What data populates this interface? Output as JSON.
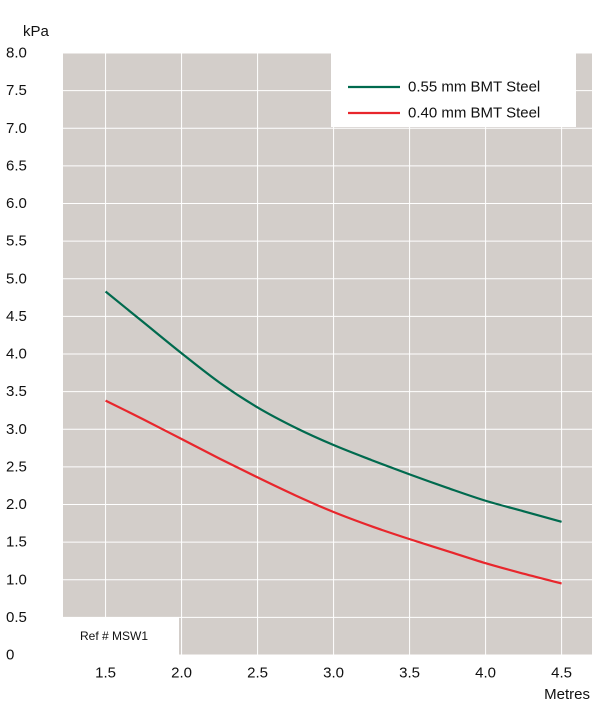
{
  "chart_data": {
    "type": "line",
    "ylabel": "kPa",
    "xlabel": "Metres",
    "xlim": [
      1.22,
      4.7
    ],
    "ylim": [
      0,
      8.0
    ],
    "x_ticks": [
      1.5,
      2.0,
      2.5,
      3.0,
      3.5,
      4.0,
      4.5
    ],
    "x_tick_labels": [
      "1.5",
      "2.0",
      "2.5",
      "3.0",
      "3.5",
      "4.0",
      "4.5"
    ],
    "y_ticks": [
      0,
      0.5,
      1.0,
      1.5,
      2.0,
      2.5,
      3.0,
      3.5,
      4.0,
      4.5,
      5.0,
      5.5,
      6.0,
      6.5,
      7.0,
      7.5,
      8.0
    ],
    "y_tick_labels": [
      "0",
      "0.5",
      "1.0",
      "1.5",
      "2.0",
      "2.5",
      "3.0",
      "3.5",
      "4.0",
      "4.5",
      "5.0",
      "5.5",
      "6.0",
      "6.5",
      "7.0",
      "7.5",
      "8.0"
    ],
    "grid": true,
    "legend_position": "top-right",
    "annotation": "Ref # MSW1",
    "background_color": "#d3ceca",
    "series": [
      {
        "name": "0.55 mm BMT Steel",
        "color": "#006a4e",
        "x": [
          1.5,
          1.75,
          2.0,
          2.25,
          2.5,
          2.75,
          3.0,
          3.25,
          3.5,
          3.75,
          4.0,
          4.25,
          4.5
        ],
        "y": [
          4.83,
          4.42,
          4.01,
          3.62,
          3.29,
          3.02,
          2.79,
          2.59,
          2.4,
          2.22,
          2.05,
          1.91,
          1.77
        ]
      },
      {
        "name": "0.40 mm BMT Steel",
        "color": "#e8262c",
        "x": [
          1.5,
          1.75,
          2.0,
          2.25,
          2.5,
          2.75,
          3.0,
          3.25,
          3.5,
          3.75,
          4.0,
          4.25,
          4.5
        ],
        "y": [
          3.38,
          3.13,
          2.87,
          2.61,
          2.36,
          2.12,
          1.9,
          1.71,
          1.54,
          1.38,
          1.22,
          1.08,
          0.95
        ]
      }
    ]
  }
}
